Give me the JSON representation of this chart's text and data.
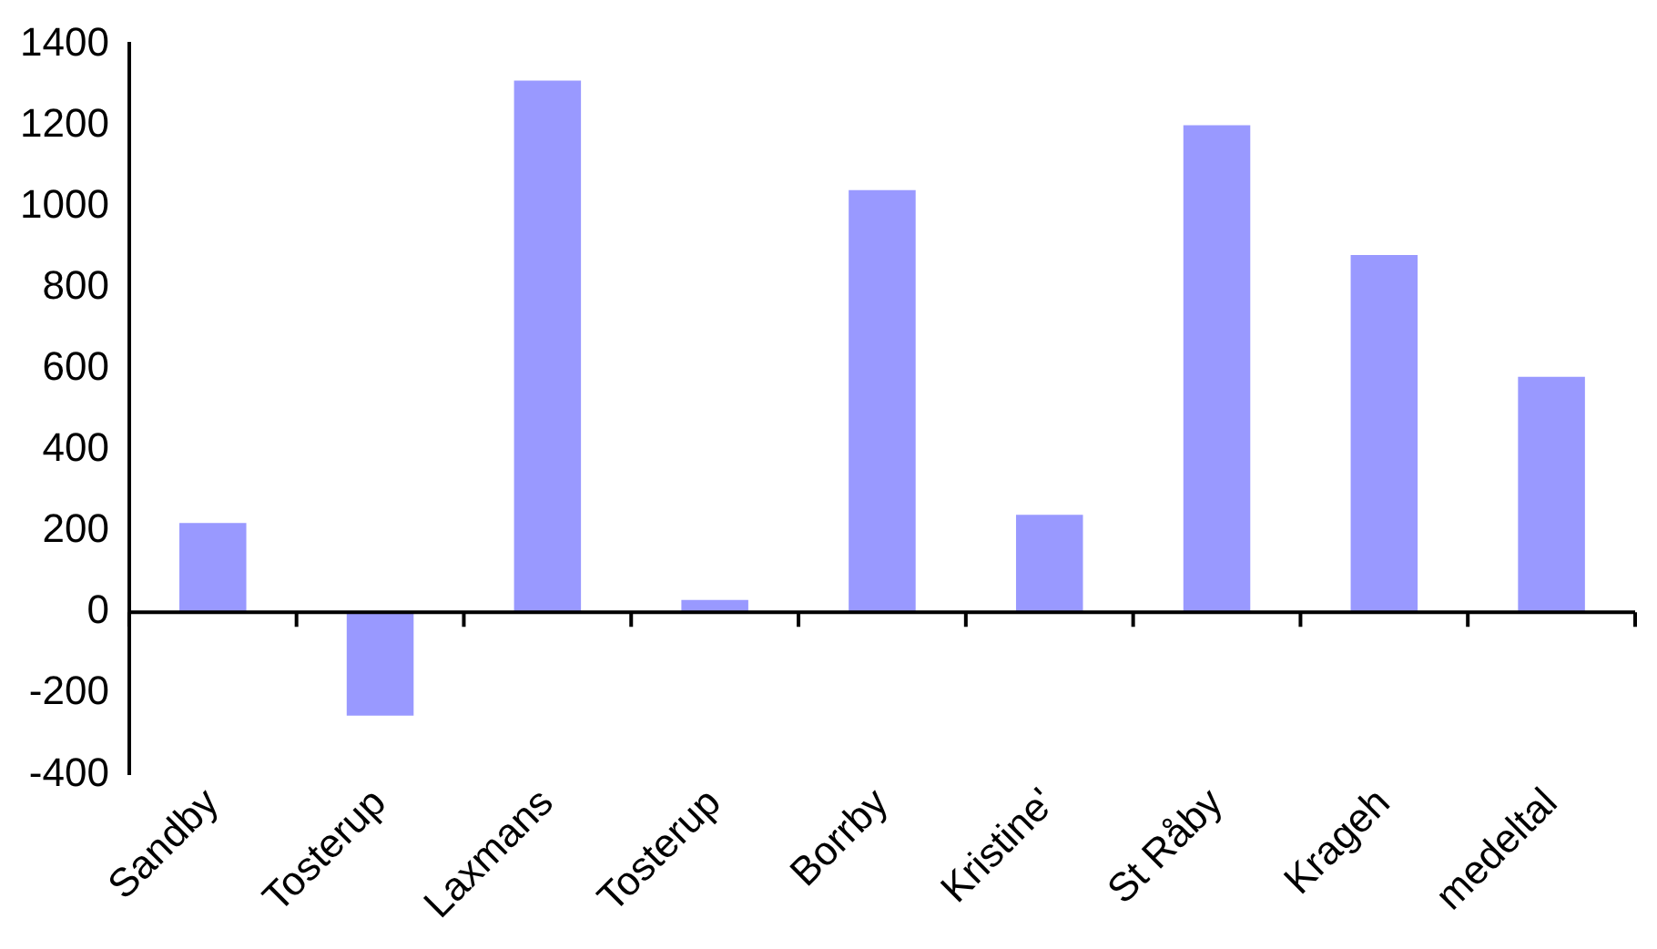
{
  "chart_data": {
    "type": "bar",
    "categories": [
      "Sandby",
      "Tosterup",
      "Laxmans",
      "Tosterup",
      "Borrby",
      "Kristine'",
      "St Råby",
      "Krageh",
      "medeltal"
    ],
    "values": [
      220,
      -255,
      1310,
      30,
      1040,
      240,
      1200,
      880,
      580
    ],
    "color": "#9999ff",
    "ylim": [
      -400,
      1400
    ],
    "yticks": [
      -400,
      -200,
      0,
      200,
      400,
      600,
      800,
      1000,
      1200,
      1400
    ],
    "legend": false
  }
}
